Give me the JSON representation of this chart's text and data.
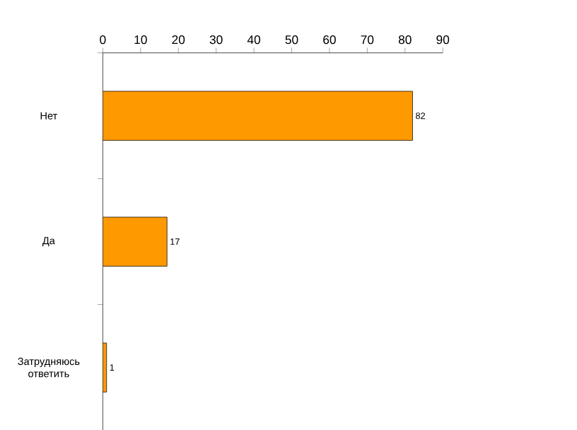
{
  "chart_data": {
    "type": "bar",
    "orientation": "horizontal",
    "categories": [
      "Нет",
      "Да",
      "Затрудняюсь ответить"
    ],
    "values": [
      82,
      17,
      1
    ],
    "color": "#ff9900",
    "xlim": [
      0,
      90
    ],
    "xticks": [
      0,
      10,
      20,
      30,
      40,
      50,
      60,
      70,
      80,
      90
    ],
    "data_labels": true,
    "grid": false
  }
}
